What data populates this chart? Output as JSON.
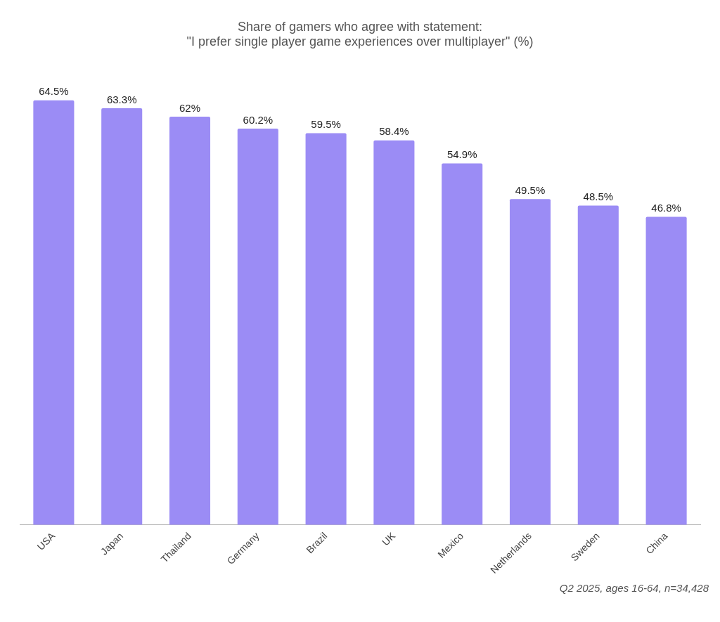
{
  "chart_data": {
    "type": "bar",
    "title": "Share of gamers who agree with statement:\n\"I prefer single player game experiences over multiplayer\" (%)",
    "categories": [
      "USA",
      "Japan",
      "Thailand",
      "Germany",
      "Brazil",
      "UK",
      "Mexico",
      "Netherlands",
      "Sweden",
      "China"
    ],
    "values": [
      64.5,
      63.3,
      62,
      60.2,
      59.5,
      58.4,
      54.9,
      49.5,
      48.5,
      46.8
    ],
    "value_labels": [
      "64.5%",
      "63.3%",
      "62%",
      "60.2%",
      "59.5%",
      "58.4%",
      "54.9%",
      "49.5%",
      "48.5%",
      "46.8%"
    ],
    "color": "#9b8cf5",
    "grid": false,
    "legend": false,
    "annotations": [
      "Q2 2025, ages 16-64, n=34,428"
    ]
  }
}
